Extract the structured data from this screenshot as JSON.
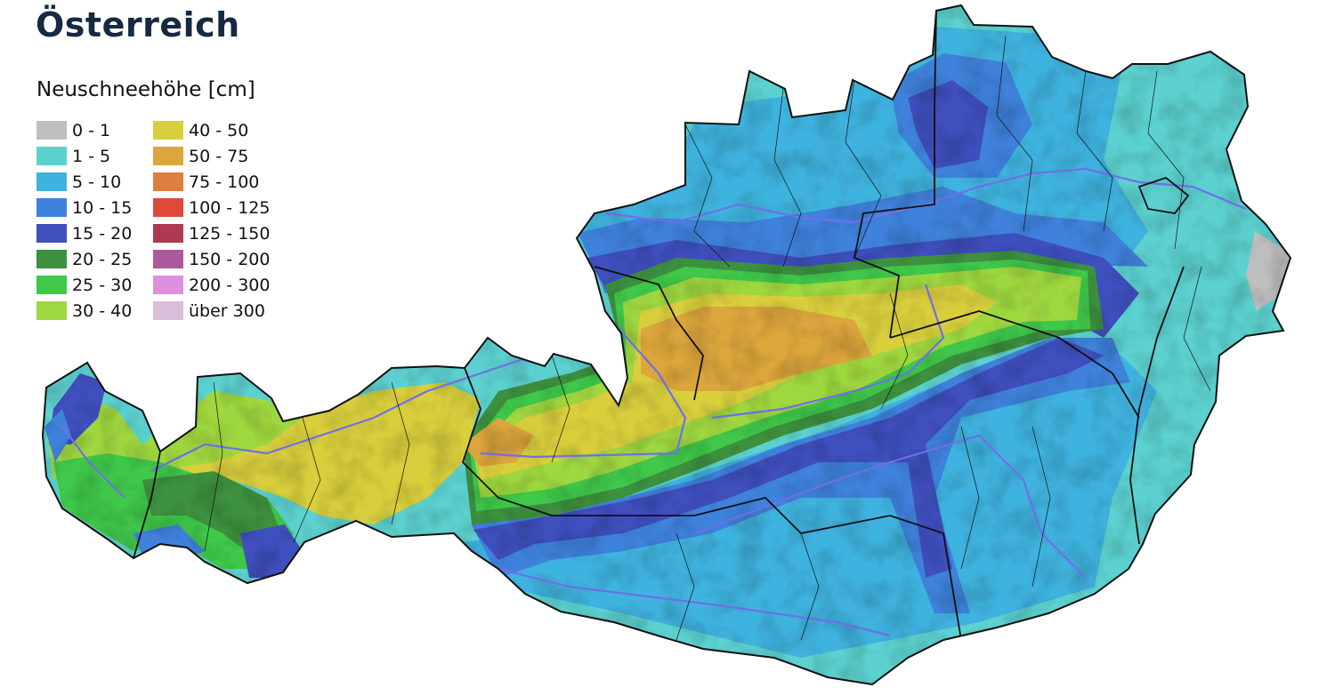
{
  "title": "Österreich",
  "legend": {
    "title": "Neuschneehöhe [cm]",
    "items": [
      {
        "label": "0 - 1",
        "color": "#bfbfbf"
      },
      {
        "label": "1 - 5",
        "color": "#5cd1cf"
      },
      {
        "label": "5 - 10",
        "color": "#3fb3df"
      },
      {
        "label": "10 - 15",
        "color": "#3f82dc"
      },
      {
        "label": "15 - 20",
        "color": "#3f4fbd"
      },
      {
        "label": "20 - 25",
        "color": "#3d913f"
      },
      {
        "label": "25 - 30",
        "color": "#3fc84a"
      },
      {
        "label": "30 - 40",
        "color": "#9fd73f"
      },
      {
        "label": "40 - 50",
        "color": "#d9cf3d"
      },
      {
        "label": "50 - 75",
        "color": "#dca63c"
      },
      {
        "label": "75 - 100",
        "color": "#df7e3f"
      },
      {
        "label": "100 - 125",
        "color": "#dd4a3a"
      },
      {
        "label": "125 - 150",
        "color": "#ae3a51"
      },
      {
        "label": "150 - 200",
        "color": "#ad5a9c"
      },
      {
        "label": "200 - 300",
        "color": "#df8fe0"
      },
      {
        "label": "über 300",
        "color": "#d9bdd9"
      }
    ]
  },
  "map": {
    "border_color": "#111111",
    "river_color": "#6f6fe6"
  }
}
